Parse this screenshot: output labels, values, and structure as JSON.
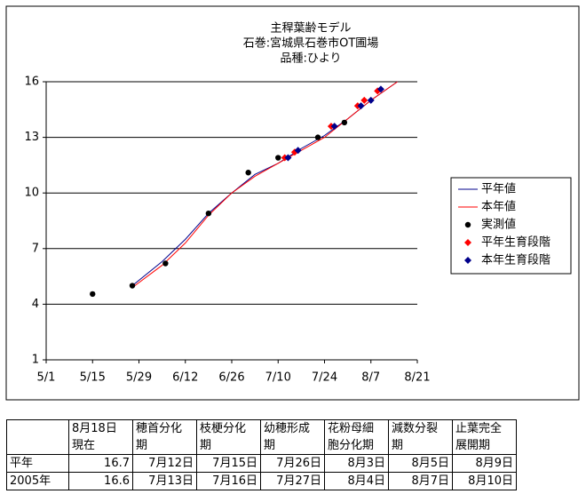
{
  "chart_data": {
    "type": "line",
    "title": [
      "主稈葉齢モデル",
      "石巻:宮城県石巻市OT圃場",
      "品種:ひより"
    ],
    "xlim": [
      "5/1",
      "8/21"
    ],
    "xticks": [
      "5/1",
      "5/15",
      "5/29",
      "6/12",
      "6/26",
      "7/10",
      "7/24",
      "8/7",
      "8/21"
    ],
    "ylim": [
      1,
      16
    ],
    "yticks": [
      1,
      4,
      7,
      10,
      13,
      16
    ],
    "grid": true,
    "legend": "right",
    "series": [
      {
        "name": "平年値",
        "type": "line",
        "color": "#00008b",
        "x": [
          "5/27",
          "6/5",
          "6/12",
          "6/19",
          "6/26",
          "7/3",
          "7/10",
          "7/17",
          "7/24",
          "7/31",
          "8/7",
          "8/15"
        ],
        "values": [
          5.0,
          6.3,
          7.5,
          8.9,
          10.0,
          11.0,
          11.6,
          12.4,
          13.1,
          14.0,
          15.0,
          16.0
        ]
      },
      {
        "name": "本年値",
        "type": "line",
        "color": "#ff0000",
        "x": [
          "5/27",
          "6/5",
          "6/12",
          "6/19",
          "6/26",
          "7/3",
          "7/10",
          "7/17",
          "7/24",
          "7/31",
          "8/7",
          "8/15"
        ],
        "values": [
          4.9,
          6.1,
          7.3,
          8.8,
          10.0,
          10.9,
          11.6,
          12.3,
          13.0,
          14.0,
          15.0,
          16.0
        ]
      },
      {
        "name": "実測値",
        "type": "scatter",
        "marker": "circle",
        "color": "#000000",
        "x": [
          "5/15",
          "5/27",
          "6/6",
          "6/19",
          "7/1",
          "7/10",
          "7/22",
          "7/30"
        ],
        "values": [
          4.55,
          5.0,
          6.2,
          8.9,
          11.1,
          11.9,
          13.0,
          13.8
        ]
      },
      {
        "name": "平年生育段階",
        "type": "scatter",
        "marker": "diamond",
        "color": "#ff0000",
        "x": [
          "7/12",
          "7/15",
          "7/26",
          "8/3",
          "8/5",
          "8/9"
        ],
        "values": [
          11.9,
          12.2,
          13.6,
          14.7,
          15.0,
          15.5
        ]
      },
      {
        "name": "本年生育段階",
        "type": "scatter",
        "marker": "diamond",
        "color": "#00008b",
        "x": [
          "7/13",
          "7/16",
          "7/27",
          "8/4",
          "8/7",
          "8/10"
        ],
        "values": [
          11.9,
          12.3,
          13.6,
          14.7,
          15.0,
          15.6
        ]
      }
    ]
  },
  "table": {
    "header": [
      "",
      "8月18日\n現在",
      "穂首分化\n期",
      "枝梗分化\n期",
      "幼穂形成\n期",
      "花粉母細\n胞分化期",
      "減数分裂\n期",
      "止葉完全\n展開期"
    ],
    "rows": [
      [
        "平年",
        16.7,
        "7月12日",
        "7月15日",
        "7月26日",
        "8月3日",
        "8月5日",
        "8月9日"
      ],
      [
        "2005年",
        16.6,
        "7月13日",
        "7月16日",
        "7月27日",
        "8月4日",
        "8月7日",
        "8月10日"
      ]
    ]
  }
}
